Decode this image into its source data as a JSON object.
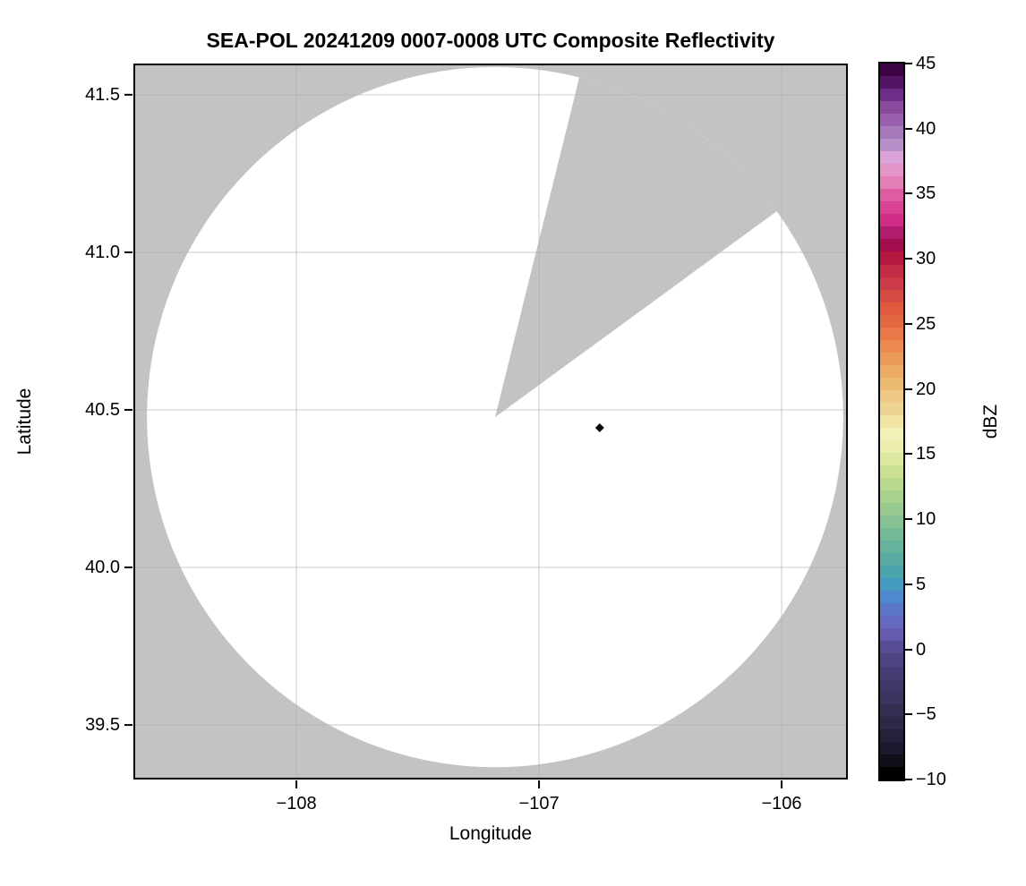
{
  "title": "SEA-POL 20241209 0007-0008 UTC Composite Reflectivity",
  "chart_data": {
    "type": "heatmap",
    "subtype": "radar-ppi-composite-reflectivity",
    "title": "SEA-POL 20241209 0007-0008 UTC Composite Reflectivity",
    "xlabel": "Longitude",
    "ylabel": "Latitude",
    "xlim": [
      -108.672,
      -105.727
    ],
    "ylim": [
      39.327,
      41.599
    ],
    "grid": true,
    "x_ticks": [
      {
        "value": -108,
        "label": "−108"
      },
      {
        "value": -107,
        "label": "−107"
      },
      {
        "value": -106,
        "label": "−106"
      }
    ],
    "y_ticks": [
      {
        "value": 39.5,
        "label": "39.5"
      },
      {
        "value": 40.0,
        "label": "40.0"
      },
      {
        "value": 40.5,
        "label": "40.5"
      },
      {
        "value": 41.0,
        "label": "41.0"
      },
      {
        "value": 41.5,
        "label": "41.5"
      }
    ],
    "radar_coverage": {
      "center_lon": -107.181,
      "center_lat": 40.477,
      "radius_deg_lon": 1.435,
      "radius_deg_lat": 1.111,
      "missing_sector_azimuth_start_deg": 14,
      "missing_sector_azimuth_end_deg": 54
    },
    "echoes": [
      {
        "lon": -106.75,
        "lat": 40.443,
        "dbz_approx": -9,
        "marker": "diamond"
      }
    ],
    "colorbar": {
      "label": "dBZ",
      "min": -10,
      "max": 45,
      "band_step_dbz": 1,
      "ticks": [
        {
          "value": 45,
          "label": "45"
        },
        {
          "value": 40,
          "label": "40"
        },
        {
          "value": 35,
          "label": "35"
        },
        {
          "value": 30,
          "label": "30"
        },
        {
          "value": 25,
          "label": "25"
        },
        {
          "value": 20,
          "label": "20"
        },
        {
          "value": 15,
          "label": "15"
        },
        {
          "value": 10,
          "label": "10"
        },
        {
          "value": 5,
          "label": "5"
        },
        {
          "value": 0,
          "label": "0"
        },
        {
          "value": -5,
          "label": "−5"
        },
        {
          "value": -10,
          "label": "−10"
        }
      ],
      "band_colors_low_to_high": [
        "#000000",
        "#120e1a",
        "#1d1830",
        "#27223c",
        "#2c2846",
        "#332d52",
        "#3a3460",
        "#3f3a69",
        "#443d74",
        "#4d4583",
        "#564d94",
        "#655cb2",
        "#6569bf",
        "#5b76c8",
        "#4e88cd",
        "#449bc0",
        "#4aa4ab",
        "#58aba3",
        "#65b29d",
        "#74b996",
        "#86c193",
        "#97c98f",
        "#a7d18c",
        "#b9d98e",
        "#cbe093",
        "#dce79f",
        "#ecefad",
        "#f3f0b7",
        "#f0e3a4",
        "#eed492",
        "#edc984",
        "#ecba72",
        "#ecab63",
        "#eb9b57",
        "#ec8a52",
        "#ea7848",
        "#e4683f",
        "#e05b3e",
        "#d54a42",
        "#cd3a48",
        "#c22c44",
        "#b5173f",
        "#a30f4e",
        "#b01d6c",
        "#cf2d86",
        "#d84394",
        "#de5ca2",
        "#e27fb4",
        "#e295c6",
        "#dca3d8",
        "#b78fc9",
        "#a778bb",
        "#9a5fae",
        "#8a4a9e",
        "#6f2d87",
        "#551366",
        "#3c0345"
      ]
    },
    "colors": {
      "no_data": "#c3c3c3",
      "coverage": "#ffffff",
      "grid": "#b0b0b0",
      "frame": "#000000",
      "echo_point": "#0a090f"
    }
  }
}
